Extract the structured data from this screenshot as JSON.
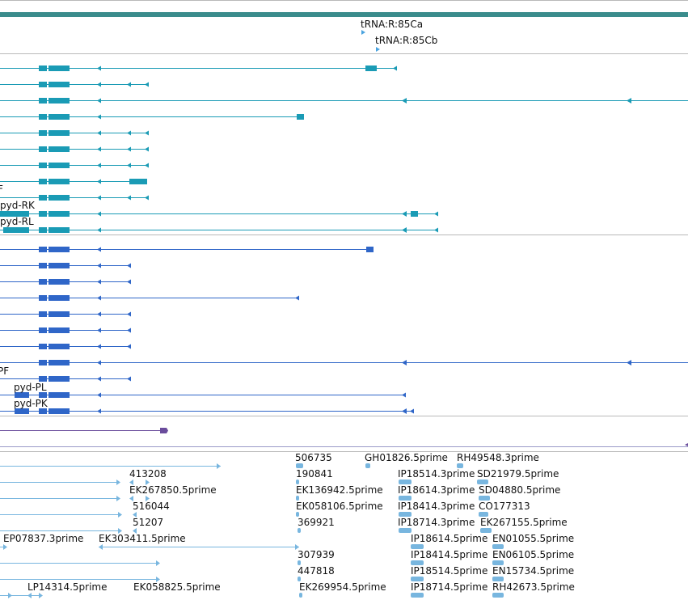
{
  "colors": {
    "scaffold": "#3a8c8c",
    "trna": "#4aa3df",
    "teal_transcript": "#1a9bb5",
    "blue_protein": "#2f66c8",
    "purple_feature": "#6a4c9c",
    "est": "#78b6df",
    "divider": "#b9b9b9"
  },
  "trna_track": {
    "labels": [
      "tRNA:R:85Ca",
      "tRNA:R:85Cb"
    ]
  },
  "transcripts": {
    "labels": [
      "pyd-RK",
      "pyd-RL"
    ],
    "cut_label": "F"
  },
  "proteins": {
    "labels": [
      "pyd-PL",
      "pyd-PK"
    ],
    "cut_label": "PF"
  },
  "est_track": {
    "rows": [
      [
        "506735",
        "GH01826.5prime",
        "RH49548.3prime"
      ],
      [
        "413208",
        "190841",
        "IP18514.3prime",
        "SD21979.5prime"
      ],
      [
        "EK267850.5prime",
        "EK136942.5prime",
        "IP18614.3prime",
        "SD04880.5prime"
      ],
      [
        "516044",
        "EK058106.5prime",
        "IP18414.3prime",
        "CO177313"
      ],
      [
        "51207",
        "369921",
        "IP18714.3prime",
        "EK267155.5prime"
      ],
      [
        "EP07837.3prime",
        "EK303411.5prime",
        "IP18614.5prime",
        "EN01055.5prime"
      ],
      [
        "307939",
        "IP18414.5prime",
        "EN06105.5prime"
      ],
      [
        "447818",
        "IP18514.5prime",
        "EN15734.5prime"
      ],
      [
        "LP14314.5prime",
        "EK058825.5prime",
        "EK269954.5prime",
        "IP18714.5prime",
        "RH42673.5prime"
      ]
    ]
  }
}
